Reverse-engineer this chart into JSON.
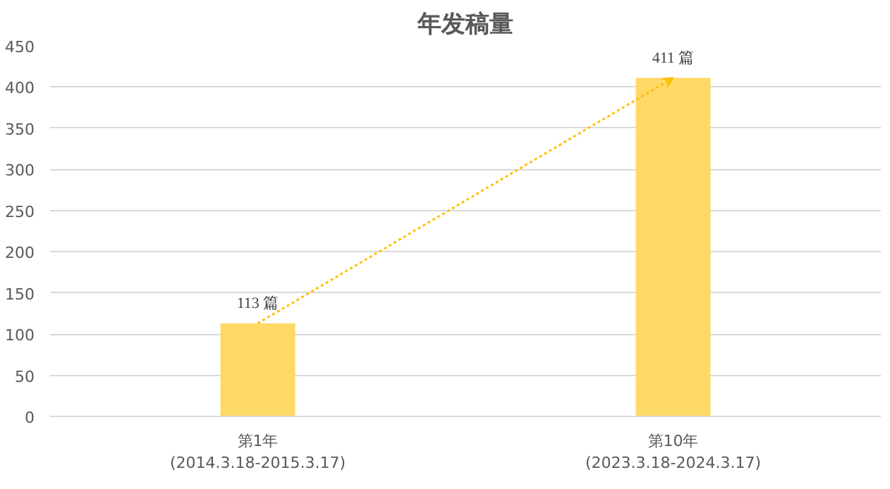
{
  "chart_data": {
    "type": "bar",
    "title": "年发稿量",
    "categories": [
      "第1年\n(2014.3.18-2015.3.17)",
      "第10年\n(2023.3.18-2024.3.17)"
    ],
    "values": [
      113,
      411
    ],
    "colors": [
      "#ffd966",
      "#ffd966"
    ],
    "value_labels": [
      "113 篇",
      "411 篇"
    ],
    "ylim": [
      0,
      450
    ],
    "yticks": [
      0,
      50,
      100,
      150,
      200,
      250,
      300,
      350,
      400,
      450
    ],
    "grid": "y"
  }
}
